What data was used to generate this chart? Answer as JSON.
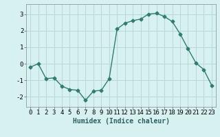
{
  "x": [
    0,
    1,
    2,
    3,
    4,
    5,
    6,
    7,
    8,
    9,
    10,
    11,
    12,
    13,
    14,
    15,
    16,
    17,
    18,
    19,
    20,
    21,
    22,
    23
  ],
  "y": [
    -0.2,
    0.0,
    -0.9,
    -0.85,
    -1.35,
    -1.55,
    -1.6,
    -2.2,
    -1.65,
    -1.6,
    -0.9,
    2.1,
    2.45,
    2.6,
    2.7,
    3.0,
    3.05,
    2.85,
    2.55,
    1.8,
    0.9,
    0.05,
    -0.35,
    -1.3
  ],
  "line_color": "#2e7d6e",
  "marker": "D",
  "markersize": 2.5,
  "linewidth": 1.0,
  "bg_color": "#d7f0f0",
  "grid_color": "#b8d8d8",
  "xlabel": "Humidex (Indice chaleur)",
  "xlabel_fontsize": 7,
  "xlim": [
    -0.5,
    23.5
  ],
  "ylim": [
    -2.6,
    3.6
  ],
  "yticks": [
    -2,
    -1,
    0,
    1,
    2,
    3
  ],
  "xticks": [
    0,
    1,
    2,
    3,
    4,
    5,
    6,
    7,
    8,
    9,
    10,
    11,
    12,
    13,
    14,
    15,
    16,
    17,
    18,
    19,
    20,
    21,
    22,
    23
  ],
  "tick_fontsize": 6.5
}
